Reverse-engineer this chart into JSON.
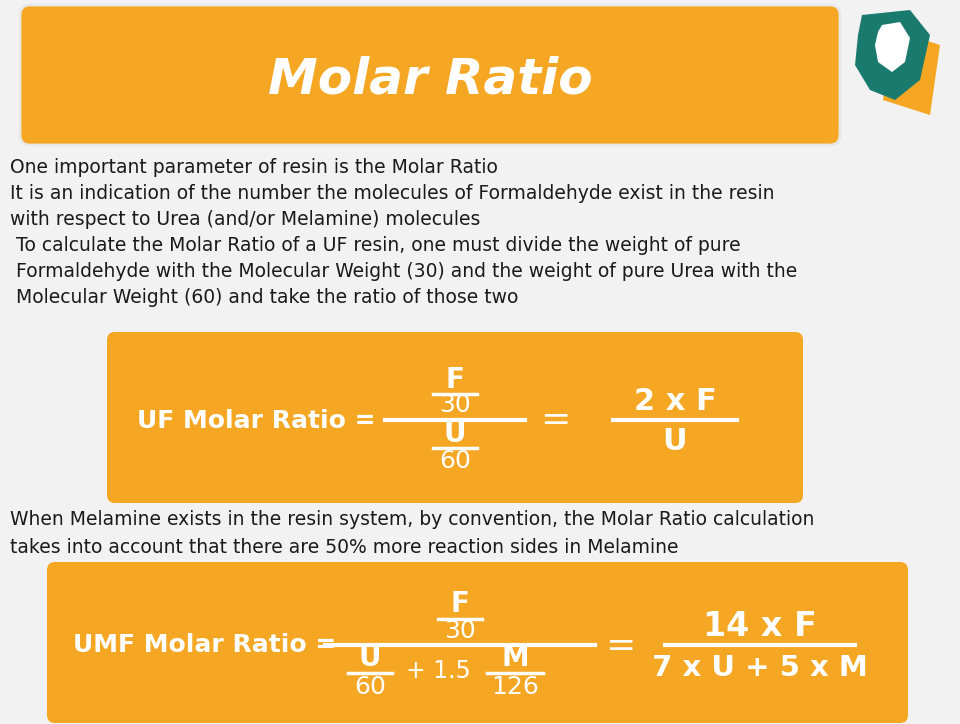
{
  "title": "Molar Ratio",
  "title_color": "#FFFFFF",
  "title_bg_color": "#F5A623",
  "title_border_color": "#E8E8E8",
  "bg_color": "#F2F2F2",
  "text_color": "#1A1A1A",
  "formula_bg_color": "#F5A623",
  "formula_text_color": "#FFFFFF",
  "body_lines": [
    "One important parameter of resin is the Molar Ratio",
    "It is an indication of the number the molecules of Formaldehyde exist in the resin",
    "with respect to Urea (and/or Melamine) molecules",
    " To calculate the Molar Ratio of a UF resin, one must divide the weight of pure",
    " Formaldehyde with the Molecular Weight (30) and the weight of pure Urea with the",
    " Molecular Weight (60) and take the ratio of those two"
  ],
  "bottom_lines": [
    "When Melamine exists in the resin system, by convention, the Molar Ratio calculation",
    "takes into account that there are 50% more reaction sides in Melamine"
  ],
  "logo_teal": "#1B7A6E",
  "logo_orange": "#F5A623"
}
